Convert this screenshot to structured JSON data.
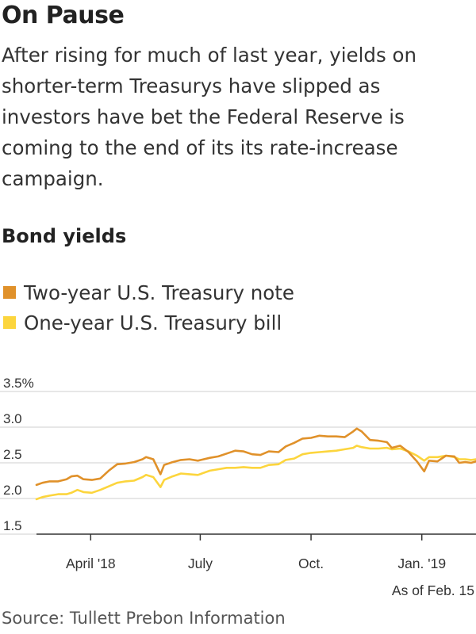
{
  "header": {
    "title": "On Pause",
    "subtitle": "After rising for much of last year, yields on shorter-term Treasurys have slipped as investors have bet the Federal Reserve is coming to the end of its its rate-increase campaign.",
    "section": "Bond yields"
  },
  "footer": {
    "note": "As of Feb. 15",
    "source": "Source: Tullett Prebon Information"
  },
  "colors": {
    "two_year": "#e0912a",
    "one_year": "#fcd53d",
    "grid": "#cfcfcf",
    "axis": "#333333"
  },
  "chart_data": {
    "type": "line",
    "title": "Bond yields",
    "ylim": [
      1.5,
      3.5
    ],
    "yticks": [
      1.5,
      2.0,
      2.5,
      3.0,
      3.5
    ],
    "ytick_labels": [
      "1.5",
      "2.0",
      "2.5",
      "3.0",
      "3.5%"
    ],
    "xlim": [
      "2018-02-15",
      "2019-02-15"
    ],
    "xticks": [
      "2018-04-01",
      "2018-07-01",
      "2018-10-01",
      "2019-01-01"
    ],
    "xtick_labels": [
      "April '18",
      "July",
      "Oct.",
      "Jan. '19"
    ],
    "grid": true,
    "legend_position": "top-left",
    "series": [
      {
        "name": "Two-year U.S. Treasury note",
        "color": "#e0912a",
        "points": [
          [
            "2018-02-15",
            2.19
          ],
          [
            "2018-02-20",
            2.22
          ],
          [
            "2018-02-26",
            2.24
          ],
          [
            "2018-03-05",
            2.24
          ],
          [
            "2018-03-12",
            2.27
          ],
          [
            "2018-03-16",
            2.31
          ],
          [
            "2018-03-21",
            2.32
          ],
          [
            "2018-03-26",
            2.27
          ],
          [
            "2018-04-02",
            2.26
          ],
          [
            "2018-04-09",
            2.28
          ],
          [
            "2018-04-16",
            2.39
          ],
          [
            "2018-04-23",
            2.48
          ],
          [
            "2018-04-30",
            2.49
          ],
          [
            "2018-05-07",
            2.51
          ],
          [
            "2018-05-14",
            2.55
          ],
          [
            "2018-05-17",
            2.58
          ],
          [
            "2018-05-23",
            2.55
          ],
          [
            "2018-05-29",
            2.34
          ],
          [
            "2018-06-01",
            2.47
          ],
          [
            "2018-06-08",
            2.51
          ],
          [
            "2018-06-15",
            2.54
          ],
          [
            "2018-06-22",
            2.55
          ],
          [
            "2018-06-29",
            2.53
          ],
          [
            "2018-07-09",
            2.57
          ],
          [
            "2018-07-16",
            2.59
          ],
          [
            "2018-07-23",
            2.63
          ],
          [
            "2018-07-30",
            2.67
          ],
          [
            "2018-08-06",
            2.66
          ],
          [
            "2018-08-13",
            2.62
          ],
          [
            "2018-08-20",
            2.61
          ],
          [
            "2018-08-27",
            2.66
          ],
          [
            "2018-09-04",
            2.65
          ],
          [
            "2018-09-10",
            2.73
          ],
          [
            "2018-09-17",
            2.78
          ],
          [
            "2018-09-24",
            2.84
          ],
          [
            "2018-10-01",
            2.85
          ],
          [
            "2018-10-08",
            2.88
          ],
          [
            "2018-10-15",
            2.87
          ],
          [
            "2018-10-22",
            2.87
          ],
          [
            "2018-10-29",
            2.86
          ],
          [
            "2018-11-05",
            2.94
          ],
          [
            "2018-11-08",
            2.98
          ],
          [
            "2018-11-12",
            2.94
          ],
          [
            "2018-11-19",
            2.82
          ],
          [
            "2018-11-26",
            2.81
          ],
          [
            "2018-12-03",
            2.79
          ],
          [
            "2018-12-07",
            2.71
          ],
          [
            "2018-12-14",
            2.74
          ],
          [
            "2018-12-21",
            2.65
          ],
          [
            "2018-12-28",
            2.52
          ],
          [
            "2019-01-03",
            2.38
          ],
          [
            "2019-01-07",
            2.53
          ],
          [
            "2019-01-14",
            2.52
          ],
          [
            "2019-01-21",
            2.6
          ],
          [
            "2019-01-28",
            2.59
          ],
          [
            "2019-02-01",
            2.5
          ],
          [
            "2019-02-06",
            2.51
          ],
          [
            "2019-02-11",
            2.5
          ],
          [
            "2019-02-15",
            2.52
          ]
        ]
      },
      {
        "name": "One-year U.S. Treasury bill",
        "color": "#fcd53d",
        "points": [
          [
            "2018-02-15",
            1.99
          ],
          [
            "2018-02-20",
            2.02
          ],
          [
            "2018-02-26",
            2.04
          ],
          [
            "2018-03-05",
            2.06
          ],
          [
            "2018-03-12",
            2.06
          ],
          [
            "2018-03-16",
            2.08
          ],
          [
            "2018-03-21",
            2.12
          ],
          [
            "2018-03-26",
            2.09
          ],
          [
            "2018-04-02",
            2.08
          ],
          [
            "2018-04-09",
            2.12
          ],
          [
            "2018-04-16",
            2.17
          ],
          [
            "2018-04-23",
            2.22
          ],
          [
            "2018-04-30",
            2.24
          ],
          [
            "2018-05-07",
            2.25
          ],
          [
            "2018-05-14",
            2.3
          ],
          [
            "2018-05-17",
            2.33
          ],
          [
            "2018-05-23",
            2.3
          ],
          [
            "2018-05-29",
            2.16
          ],
          [
            "2018-06-01",
            2.26
          ],
          [
            "2018-06-08",
            2.31
          ],
          [
            "2018-06-15",
            2.35
          ],
          [
            "2018-06-22",
            2.34
          ],
          [
            "2018-06-29",
            2.33
          ],
          [
            "2018-07-09",
            2.39
          ],
          [
            "2018-07-16",
            2.41
          ],
          [
            "2018-07-23",
            2.43
          ],
          [
            "2018-07-30",
            2.43
          ],
          [
            "2018-08-06",
            2.44
          ],
          [
            "2018-08-13",
            2.43
          ],
          [
            "2018-08-20",
            2.43
          ],
          [
            "2018-08-27",
            2.47
          ],
          [
            "2018-09-04",
            2.48
          ],
          [
            "2018-09-10",
            2.54
          ],
          [
            "2018-09-17",
            2.56
          ],
          [
            "2018-09-24",
            2.62
          ],
          [
            "2018-10-01",
            2.64
          ],
          [
            "2018-10-08",
            2.65
          ],
          [
            "2018-10-15",
            2.66
          ],
          [
            "2018-10-22",
            2.67
          ],
          [
            "2018-10-29",
            2.69
          ],
          [
            "2018-11-05",
            2.71
          ],
          [
            "2018-11-08",
            2.74
          ],
          [
            "2018-11-12",
            2.72
          ],
          [
            "2018-11-19",
            2.7
          ],
          [
            "2018-11-26",
            2.7
          ],
          [
            "2018-12-03",
            2.71
          ],
          [
            "2018-12-07",
            2.69
          ],
          [
            "2018-12-14",
            2.7
          ],
          [
            "2018-12-21",
            2.66
          ],
          [
            "2018-12-28",
            2.6
          ],
          [
            "2019-01-03",
            2.53
          ],
          [
            "2019-01-07",
            2.58
          ],
          [
            "2019-01-14",
            2.58
          ],
          [
            "2019-01-21",
            2.6
          ],
          [
            "2019-01-28",
            2.58
          ],
          [
            "2019-02-01",
            2.55
          ],
          [
            "2019-02-06",
            2.55
          ],
          [
            "2019-02-11",
            2.54
          ],
          [
            "2019-02-15",
            2.55
          ]
        ]
      }
    ]
  }
}
